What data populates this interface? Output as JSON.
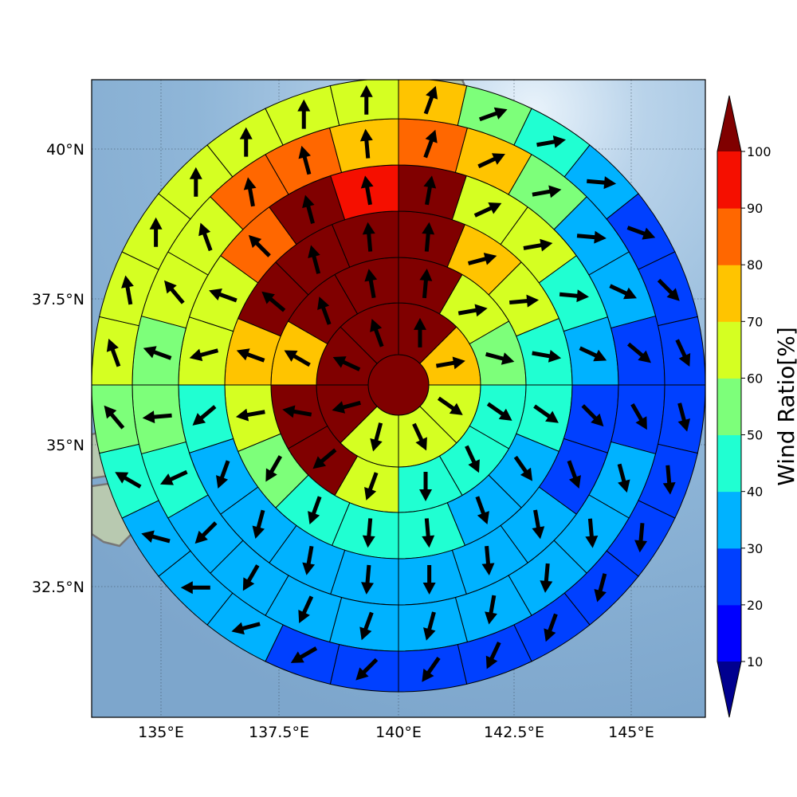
{
  "chart_data": {
    "type": "polar-sector-map",
    "center": {
      "lon": 140.0,
      "lat": 35.5
    },
    "map": {
      "lon_ticks": [
        "135°E",
        "137.5°E",
        "140°E",
        "142.5°E",
        "145°E"
      ],
      "lat_ticks": [
        "40°N",
        "37.5°N",
        "35°N",
        "32.5°N"
      ],
      "gridlines": true
    },
    "sector_layout": "ring 0: 1 cell; outer rings: 8, 12, 16, 20, 24, 28 equal sectors, clockwise from north",
    "rings": [
      [
        100
      ],
      [
        100,
        70,
        60,
        60,
        60,
        100,
        100,
        100
      ],
      [
        100,
        60,
        50,
        40,
        40,
        40,
        60,
        100,
        100,
        70,
        100,
        100
      ],
      [
        100,
        70,
        60,
        40,
        40,
        30,
        30,
        40,
        40,
        40,
        50,
        60,
        70,
        100,
        100,
        100
      ],
      [
        100,
        60,
        60,
        40,
        30,
        20,
        20,
        30,
        30,
        30,
        30,
        30,
        30,
        30,
        40,
        60,
        60,
        80,
        100,
        90
      ],
      [
        80,
        70,
        50,
        30,
        30,
        20,
        20,
        30,
        30,
        30,
        30,
        30,
        30,
        30,
        30,
        30,
        40,
        50,
        50,
        60,
        60,
        80,
        80,
        70
      ],
      [
        70,
        50,
        40,
        30,
        20,
        20,
        20,
        20,
        20,
        20,
        20,
        20,
        20,
        20,
        20,
        20,
        30,
        30,
        30,
        40,
        50,
        60,
        60,
        60,
        60,
        60,
        60,
        60
      ]
    ],
    "wind_angles_deg": [
      [
        0
      ],
      [
        0,
        80,
        125,
        155,
        195,
        255,
        295,
        340
      ],
      [
        5,
        80,
        105,
        125,
        155,
        180,
        200,
        230,
        280,
        300,
        340,
        350
      ],
      [
        5,
        75,
        85,
        100,
        125,
        145,
        160,
        175,
        185,
        200,
        210,
        260,
        290,
        310,
        345,
        355
      ],
      [
        10,
        65,
        80,
        95,
        115,
        135,
        160,
        170,
        175,
        180,
        185,
        190,
        195,
        200,
        230,
        255,
        290,
        315,
        345,
        350
      ],
      [
        20,
        65,
        80,
        95,
        115,
        130,
        150,
        165,
        175,
        185,
        190,
        195,
        200,
        205,
        210,
        225,
        245,
        265,
        290,
        320,
        340,
        350,
        345,
        355
      ],
      [
        20,
        70,
        80,
        95,
        110,
        135,
        155,
        165,
        175,
        185,
        195,
        200,
        205,
        215,
        225,
        240,
        255,
        270,
        285,
        300,
        320,
        340,
        350,
        0,
        0,
        0,
        0,
        0
      ]
    ],
    "colorbar": {
      "label": "Wind Ratio[%]",
      "ticks": [
        "10",
        "20",
        "30",
        "40",
        "50",
        "60",
        "70",
        "80",
        "90",
        "100"
      ],
      "colors": [
        "#00008f",
        "#0000ff",
        "#0040ff",
        "#00b2ff",
        "#20ffd2",
        "#7dff7a",
        "#d5ff22",
        "#ffc400",
        "#ff6700",
        "#f50f00",
        "#800000"
      ]
    }
  }
}
